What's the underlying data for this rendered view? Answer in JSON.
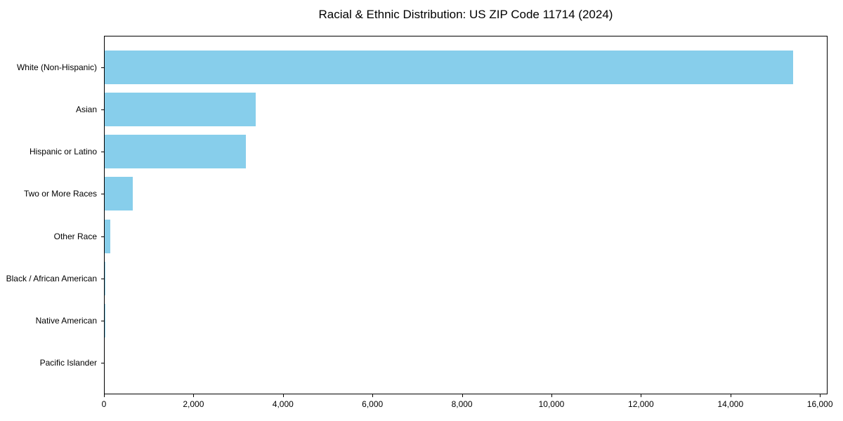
{
  "chart_data": {
    "type": "bar",
    "orientation": "horizontal",
    "title": "Racial & Ethnic Distribution: US ZIP Code 11714 (2024)",
    "categories": [
      "White (Non-Hispanic)",
      "Asian",
      "Hispanic or Latino",
      "Two or More Races",
      "Other Race",
      "Black / African American",
      "Native American",
      "Pacific Islander"
    ],
    "values": [
      15390,
      3375,
      3155,
      630,
      125,
      20,
      5,
      0
    ],
    "xlabel": "",
    "ylabel": "",
    "xlim": [
      0,
      16170
    ],
    "x_ticks": [
      0,
      2000,
      4000,
      6000,
      8000,
      10000,
      12000,
      14000,
      16000
    ],
    "x_tick_labels": [
      "0",
      "2,000",
      "4,000",
      "6,000",
      "8,000",
      "10,000",
      "12,000",
      "14,000",
      "16,000"
    ],
    "bar_color": "#87CEEB",
    "spine_color": "#000000",
    "grid": false,
    "legend": null
  }
}
